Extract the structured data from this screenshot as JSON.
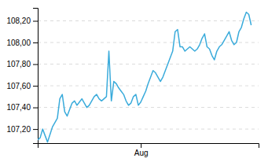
{
  "chart_data": {
    "type": "line",
    "x": [
      0,
      1,
      2,
      3,
      4,
      5,
      6,
      7,
      8,
      9,
      10,
      11,
      12,
      13,
      14,
      15,
      16,
      17,
      18,
      19,
      20,
      21,
      22,
      23,
      24,
      25,
      26,
      27,
      28,
      29,
      30,
      31,
      32,
      33,
      34,
      35,
      36,
      37,
      38,
      39,
      40,
      41,
      42,
      43,
      44,
      45,
      46,
      47,
      48,
      49,
      50,
      51,
      52,
      53,
      54,
      55,
      56,
      57,
      58,
      59,
      60,
      61,
      62,
      63,
      64,
      65,
      66,
      67,
      68,
      69,
      70,
      71,
      72,
      73,
      74,
      75,
      76,
      77,
      78,
      79,
      80,
      81,
      82,
      83,
      84,
      85,
      86,
      87
    ],
    "values": [
      107.1,
      107.12,
      107.2,
      107.14,
      107.08,
      107.15,
      107.22,
      107.26,
      107.3,
      107.48,
      107.52,
      107.36,
      107.32,
      107.38,
      107.44,
      107.46,
      107.42,
      107.45,
      107.48,
      107.44,
      107.4,
      107.42,
      107.46,
      107.5,
      107.52,
      107.48,
      107.46,
      107.48,
      107.5,
      107.92,
      107.46,
      107.64,
      107.62,
      107.58,
      107.55,
      107.52,
      107.46,
      107.42,
      107.44,
      107.5,
      107.52,
      107.42,
      107.45,
      107.5,
      107.55,
      107.62,
      107.68,
      107.74,
      107.72,
      107.68,
      107.64,
      107.68,
      107.74,
      107.8,
      107.86,
      107.92,
      108.1,
      108.12,
      107.96,
      107.96,
      107.92,
      107.94,
      107.96,
      107.94,
      107.92,
      107.94,
      107.98,
      108.04,
      108.08,
      107.96,
      107.94,
      107.88,
      107.84,
      107.92,
      107.96,
      107.98,
      108.02,
      108.06,
      108.1,
      108.02,
      107.98,
      108.0,
      108.1,
      108.14,
      108.22,
      108.28,
      108.26,
      108.16
    ],
    "color": "#3aabdb",
    "xlim": [
      0,
      90
    ],
    "xticks": [
      {
        "value": 42,
        "label": "Aug"
      }
    ],
    "ylim": [
      107.07,
      108.32
    ],
    "yticks": [
      {
        "value": 107.2,
        "label": "107,20"
      },
      {
        "value": 107.4,
        "label": "107,40"
      },
      {
        "value": 107.6,
        "label": "107,60"
      },
      {
        "value": 107.8,
        "label": "107,80"
      },
      {
        "value": 108.0,
        "label": "108,00"
      },
      {
        "value": 108.2,
        "label": "108,20"
      }
    ],
    "grid": true
  }
}
